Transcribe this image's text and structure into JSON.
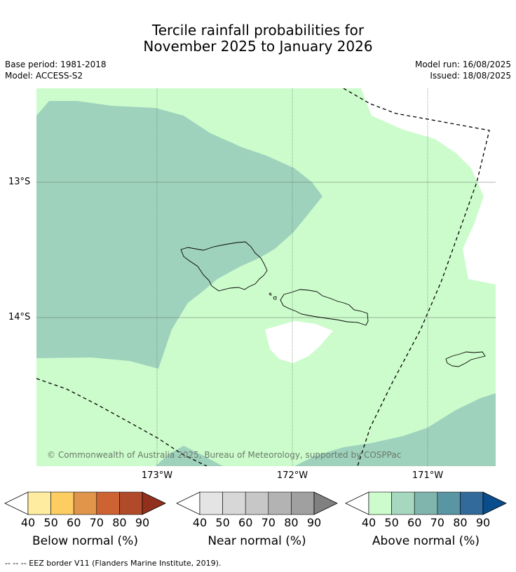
{
  "header": {
    "title_line1": "Tercile rainfall probabilities for",
    "title_line2": "November 2025 to January 2026",
    "base_period": "Base period: 1981-2018",
    "model": "Model: ACCESS-S2",
    "model_run": "Model run: 16/08/2025",
    "issued": "Issued: 18/08/2025"
  },
  "map": {
    "lat_labels": [
      "13°S",
      "14°S"
    ],
    "lon_labels": [
      "173°W",
      "172°W",
      "171°W"
    ],
    "copyright": "© Commonwealth of Australia 2025, Bureau of Meteorology, supported by COSPPac",
    "colors": {
      "above_50": "#ccfccc",
      "above_60": "#9fd2bd",
      "land_outline": "#000000",
      "eez": "#000000"
    }
  },
  "legends": [
    {
      "title": "Below normal (%)",
      "ticks": [
        "40",
        "50",
        "60",
        "70",
        "80",
        "90"
      ],
      "colors": [
        "#ffffff",
        "#feeda0",
        "#fecd62",
        "#e0954a",
        "#cd6232",
        "#b04a28",
        "#92301e"
      ]
    },
    {
      "title": "Near normal (%)",
      "ticks": [
        "40",
        "50",
        "60",
        "70",
        "80",
        "90"
      ],
      "colors": [
        "#ffffff",
        "#e4e4e4",
        "#d7d7d7",
        "#c7c7c7",
        "#b3b3b3",
        "#a0a0a0",
        "#808080"
      ]
    },
    {
      "title": "Above normal (%)",
      "ticks": [
        "40",
        "50",
        "60",
        "70",
        "80",
        "90"
      ],
      "colors": [
        "#ffffff",
        "#ccfccc",
        "#a6d8bf",
        "#7fb5ad",
        "#5a95a3",
        "#326a9c",
        "#0a4d8c"
      ]
    }
  ],
  "footnote": "--  --  -- EEZ border V11 (Flanders Marine Institute, 2019)."
}
